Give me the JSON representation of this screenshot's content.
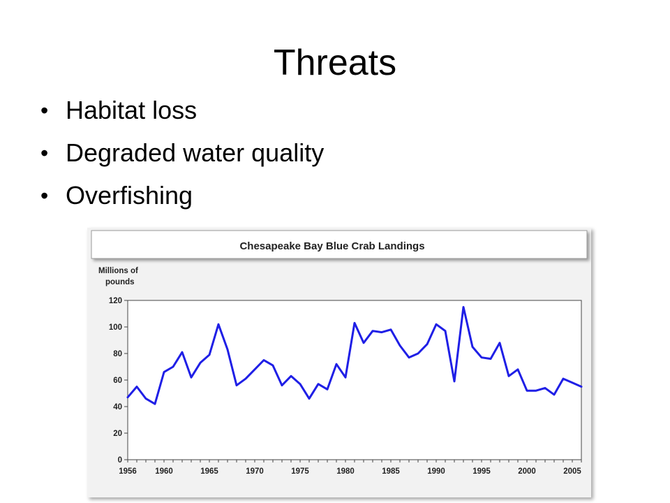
{
  "slide": {
    "title": "Threats",
    "bullets": [
      "Habitat loss",
      "Degraded water quality",
      "Overfishing"
    ]
  },
  "chart_data": {
    "type": "line",
    "title": "Chesapeake Bay Blue Crab Landings",
    "ylabel": [
      "Millions of",
      "pounds"
    ],
    "xlabel": "",
    "ylim": [
      0,
      120
    ],
    "xlim": [
      1956,
      2006
    ],
    "yticks": [
      0,
      20,
      40,
      60,
      80,
      100,
      120
    ],
    "xticks": [
      1956,
      1960,
      1965,
      1970,
      1975,
      1980,
      1985,
      1990,
      1995,
      2000,
      2005
    ],
    "grid": false,
    "line_color": "#1f1fe6",
    "series": [
      {
        "x": [
          1956,
          1957,
          1958,
          1959,
          1960,
          1961,
          1962,
          1963,
          1964,
          1965,
          1966,
          1967,
          1968,
          1969,
          1970,
          1971,
          1972,
          1973,
          1974,
          1975,
          1976,
          1977,
          1978,
          1979,
          1980,
          1981,
          1982,
          1983,
          1984,
          1985,
          1986,
          1987,
          1988,
          1989,
          1990,
          1991,
          1992,
          1993,
          1994,
          1995,
          1996,
          1997,
          1998,
          1999,
          2000,
          2001,
          2002,
          2003,
          2004,
          2005,
          2006
        ],
        "values": [
          47,
          55,
          46,
          42,
          66,
          70,
          81,
          62,
          73,
          79,
          102,
          83,
          56,
          61,
          68,
          75,
          71,
          56,
          63,
          57,
          46,
          57,
          53,
          72,
          62,
          103,
          88,
          97,
          96,
          98,
          86,
          77,
          80,
          87,
          102,
          97,
          59,
          115,
          85,
          77,
          76,
          88,
          63,
          68,
          52,
          52,
          54,
          49,
          61,
          58,
          55
        ]
      }
    ]
  }
}
